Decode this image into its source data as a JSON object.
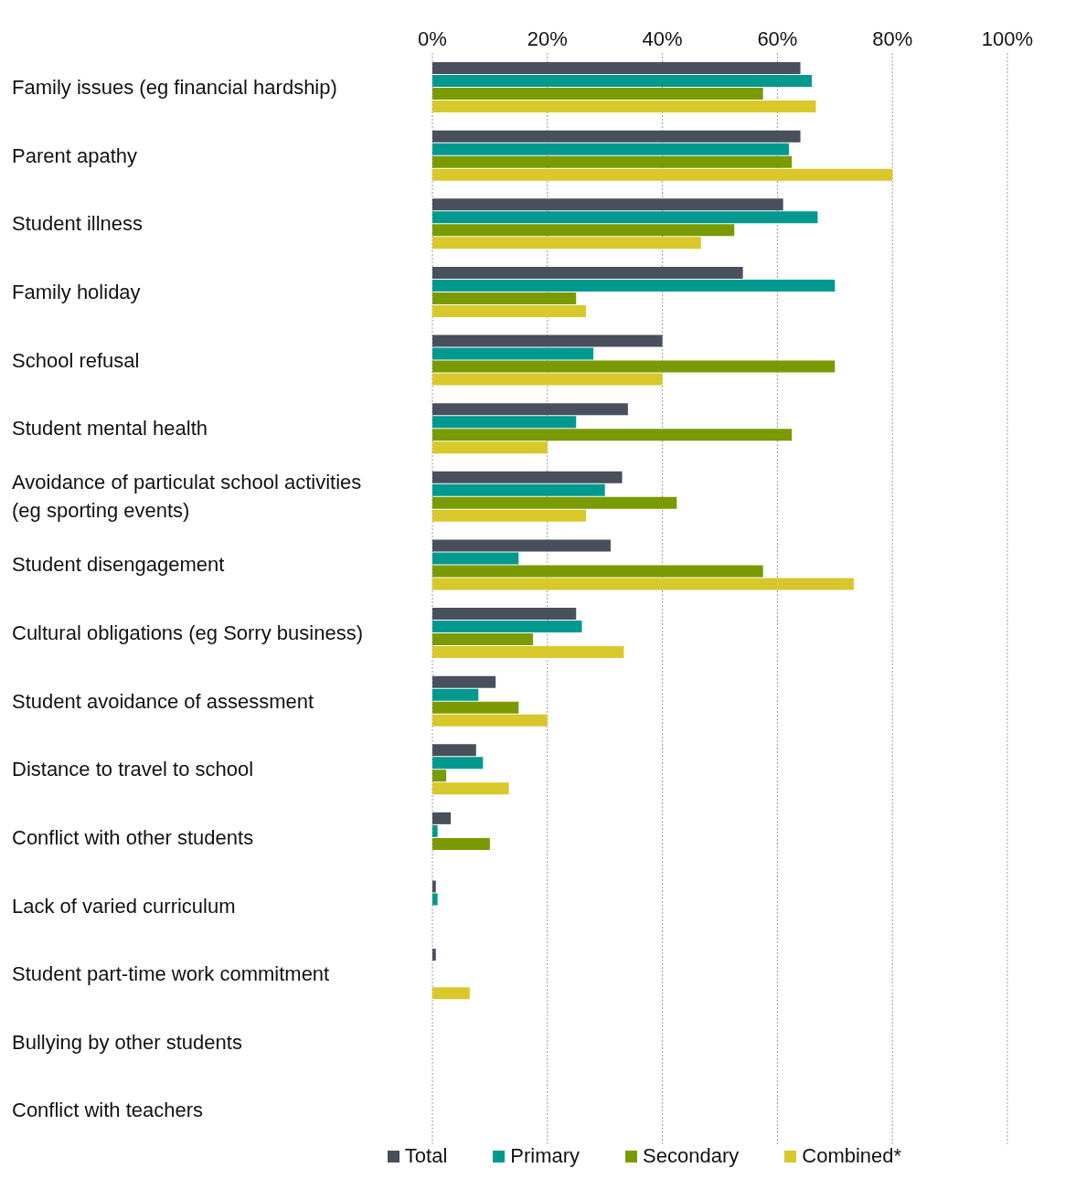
{
  "chart_data": {
    "type": "bar",
    "orientation": "horizontal",
    "categories": [
      "Family issues (eg financial hardship)",
      "Parent apathy",
      "Student illness",
      "Family holiday",
      "School refusal",
      "Student mental health",
      "Avoidance of particulat school activities (eg sporting events)",
      "Student disengagement",
      "Cultural obligations (eg Sorry business)",
      "Student avoidance of assessment",
      "Distance to travel to school",
      "Conflict with other students",
      "Lack of varied curriculum",
      "Student part-time work commitment",
      "Bullying by other students",
      "Conflict with teachers"
    ],
    "series": [
      {
        "name": "Total",
        "color": "#4a4f5c",
        "values": [
          64,
          64,
          61,
          54,
          40,
          34,
          33,
          31,
          25,
          11,
          7.6,
          3.2,
          0.6,
          0.6,
          0,
          0
        ]
      },
      {
        "name": "Primary",
        "color": "#009990",
        "values": [
          66,
          62,
          67,
          70,
          28,
          25,
          30,
          15,
          26,
          8,
          8.8,
          0.9,
          0.9,
          0,
          0,
          0
        ]
      },
      {
        "name": "Secondary",
        "color": "#7a9a01",
        "values": [
          57.5,
          62.5,
          52.5,
          25,
          70,
          62.5,
          42.5,
          57.5,
          17.5,
          15,
          2.4,
          10,
          0,
          0,
          0,
          0
        ]
      },
      {
        "name": "Combined*",
        "color": "#d8c82a",
        "values": [
          66.7,
          80,
          46.7,
          26.7,
          40,
          20,
          26.7,
          73.3,
          33.3,
          20,
          13.3,
          0,
          0,
          6.5,
          0,
          0
        ]
      }
    ],
    "xlim": [
      0,
      100
    ],
    "xticks": [
      {
        "value": 0,
        "label": "0%"
      },
      {
        "value": 20,
        "label": "20%"
      },
      {
        "value": 40,
        "label": "40%"
      },
      {
        "value": 60,
        "label": "60%"
      },
      {
        "value": 80,
        "label": "80%"
      },
      {
        "value": 100,
        "label": "100%"
      }
    ],
    "grid": "x",
    "legend": "bottom"
  }
}
